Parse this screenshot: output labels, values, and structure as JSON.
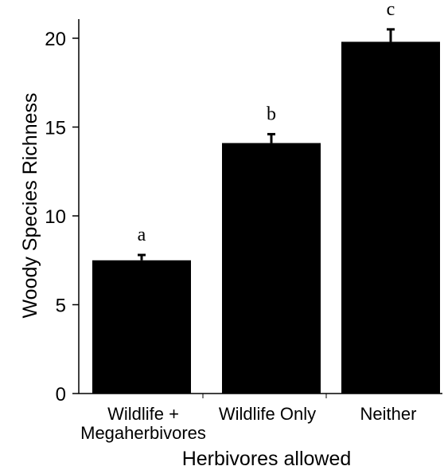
{
  "chart_data": {
    "type": "bar",
    "categories": [
      [
        "Wildlife +",
        "Megaherbivores"
      ],
      [
        "Wildlife Only"
      ],
      [
        "Neither"
      ]
    ],
    "values": [
      7.5,
      14.1,
      19.8
    ],
    "error_upper": [
      7.8,
      14.6,
      20.5
    ],
    "significance_letters": [
      "a",
      "b",
      "c"
    ],
    "xlabel": "Herbivores allowed",
    "ylabel": "Woody Species Richness",
    "ylim": [
      0,
      20.5
    ],
    "yticks": [
      0,
      5,
      10,
      15,
      20
    ],
    "bar_color": "#000000",
    "grid": false
  }
}
